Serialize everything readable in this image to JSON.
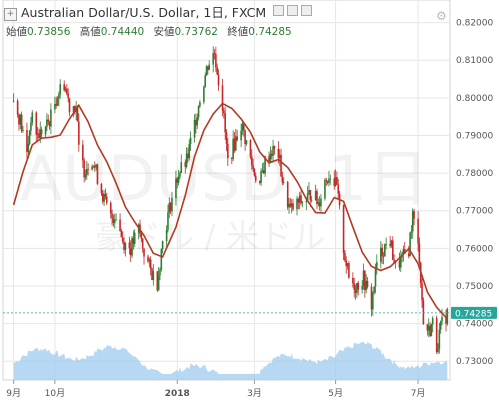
{
  "header": {
    "title": "Australian Dollar/U.S. Dollar, 1日, FXCM"
  },
  "ohlc": {
    "open_label": "始値",
    "open": "0.73856",
    "high_label": "高値",
    "high": "0.74440",
    "low_label": "安値",
    "low": "0.73762",
    "close_label": "終値",
    "close": "0.74285"
  },
  "watermark": {
    "symbol": "AUDUSD, 1日",
    "name": "豪ドル / 米ドル"
  },
  "colors": {
    "up": "#2e7d32",
    "down": "#c62828",
    "ma": "#b23a22",
    "volume": "#9ecbee",
    "price_tag": "#26a69a",
    "grid": "#e6e6e6"
  },
  "chart_data": {
    "type": "candlestick",
    "title": "Australian Dollar/U.S. Dollar, 1日, FXCM",
    "ylim": [
      0.725,
      0.826
    ],
    "yticks": [
      "0.73000",
      "0.74000",
      "0.75000",
      "0.76000",
      "0.77000",
      "0.78000",
      "0.79000",
      "0.80000",
      "0.81000",
      "0.82000"
    ],
    "xtick_labels": [
      "9月",
      "10月",
      "2018",
      "3月",
      "5月",
      "7月"
    ],
    "last_price": "0.74285",
    "ma_line": [
      {
        "x": "2017-09-01",
        "y": 0.7715
      },
      {
        "x": "2017-09-08",
        "y": 0.7803
      },
      {
        "x": "2017-09-15",
        "y": 0.7875
      },
      {
        "x": "2017-09-22",
        "y": 0.7893
      },
      {
        "x": "2017-09-29",
        "y": 0.7895
      },
      {
        "x": "2017-10-06",
        "y": 0.7901
      },
      {
        "x": "2017-10-13",
        "y": 0.7944
      },
      {
        "x": "2017-10-20",
        "y": 0.798
      },
      {
        "x": "2017-10-27",
        "y": 0.7936
      },
      {
        "x": "2017-11-03",
        "y": 0.7874
      },
      {
        "x": "2017-11-10",
        "y": 0.783
      },
      {
        "x": "2017-11-17",
        "y": 0.7773
      },
      {
        "x": "2017-11-24",
        "y": 0.771
      },
      {
        "x": "2017-12-01",
        "y": 0.767
      },
      {
        "x": "2017-12-08",
        "y": 0.7634
      },
      {
        "x": "2017-12-15",
        "y": 0.7587
      },
      {
        "x": "2017-12-22",
        "y": 0.7577
      },
      {
        "x": "2018-01-01",
        "y": 0.7656
      },
      {
        "x": "2018-01-08",
        "y": 0.7741
      },
      {
        "x": "2018-01-15",
        "y": 0.7844
      },
      {
        "x": "2018-01-22",
        "y": 0.7914
      },
      {
        "x": "2018-01-29",
        "y": 0.7957
      },
      {
        "x": "2018-02-05",
        "y": 0.7985
      },
      {
        "x": "2018-02-12",
        "y": 0.7972
      },
      {
        "x": "2018-02-19",
        "y": 0.7944
      },
      {
        "x": "2018-02-26",
        "y": 0.7909
      },
      {
        "x": "2018-03-05",
        "y": 0.7856
      },
      {
        "x": "2018-03-12",
        "y": 0.7827
      },
      {
        "x": "2018-03-19",
        "y": 0.7836
      },
      {
        "x": "2018-03-26",
        "y": 0.7815
      },
      {
        "x": "2018-04-02",
        "y": 0.7778
      },
      {
        "x": "2018-04-09",
        "y": 0.7731
      },
      {
        "x": "2018-04-16",
        "y": 0.7695
      },
      {
        "x": "2018-04-23",
        "y": 0.7694
      },
      {
        "x": "2018-04-30",
        "y": 0.7735
      },
      {
        "x": "2018-05-07",
        "y": 0.7725
      },
      {
        "x": "2018-05-14",
        "y": 0.7656
      },
      {
        "x": "2018-05-21",
        "y": 0.759
      },
      {
        "x": "2018-05-28",
        "y": 0.7552
      },
      {
        "x": "2018-06-04",
        "y": 0.7541
      },
      {
        "x": "2018-06-11",
        "y": 0.7551
      },
      {
        "x": "2018-06-18",
        "y": 0.7574
      },
      {
        "x": "2018-06-25",
        "y": 0.7599
      },
      {
        "x": "2018-07-02",
        "y": 0.7559
      },
      {
        "x": "2018-07-09",
        "y": 0.7484
      },
      {
        "x": "2018-07-16",
        "y": 0.7443
      },
      {
        "x": "2018-07-23",
        "y": 0.7416
      }
    ],
    "price_path": [
      {
        "x": "2017-09-01",
        "y": 0.799
      },
      {
        "x": "2017-09-06",
        "y": 0.794
      },
      {
        "x": "2017-09-11",
        "y": 0.785
      },
      {
        "x": "2017-09-14",
        "y": 0.795
      },
      {
        "x": "2017-09-19",
        "y": 0.79
      },
      {
        "x": "2017-09-25",
        "y": 0.792
      },
      {
        "x": "2017-09-29",
        "y": 0.795
      },
      {
        "x": "2017-10-04",
        "y": 0.801
      },
      {
        "x": "2017-10-09",
        "y": 0.804
      },
      {
        "x": "2017-10-13",
        "y": 0.798
      },
      {
        "x": "2017-10-18",
        "y": 0.798
      },
      {
        "x": "2017-10-20",
        "y": 0.786
      },
      {
        "x": "2017-10-24",
        "y": 0.781
      },
      {
        "x": "2017-10-30",
        "y": 0.784
      },
      {
        "x": "2017-11-03",
        "y": 0.779
      },
      {
        "x": "2017-11-08",
        "y": 0.773
      },
      {
        "x": "2017-11-13",
        "y": 0.768
      },
      {
        "x": "2017-11-17",
        "y": 0.769
      },
      {
        "x": "2017-11-22",
        "y": 0.762
      },
      {
        "x": "2017-11-28",
        "y": 0.76
      },
      {
        "x": "2017-12-04",
        "y": 0.765
      },
      {
        "x": "2017-12-08",
        "y": 0.759
      },
      {
        "x": "2017-12-13",
        "y": 0.754
      },
      {
        "x": "2017-12-18",
        "y": 0.751
      },
      {
        "x": "2017-12-22",
        "y": 0.762
      },
      {
        "x": "2017-12-28",
        "y": 0.772
      },
      {
        "x": "2018-01-03",
        "y": 0.78
      },
      {
        "x": "2018-01-09",
        "y": 0.783
      },
      {
        "x": "2018-01-15",
        "y": 0.793
      },
      {
        "x": "2018-01-19",
        "y": 0.8
      },
      {
        "x": "2018-01-25",
        "y": 0.809
      },
      {
        "x": "2018-01-30",
        "y": 0.812
      },
      {
        "x": "2018-02-05",
        "y": 0.798
      },
      {
        "x": "2018-02-09",
        "y": 0.783
      },
      {
        "x": "2018-02-14",
        "y": 0.788
      },
      {
        "x": "2018-02-19",
        "y": 0.793
      },
      {
        "x": "2018-02-23",
        "y": 0.788
      },
      {
        "x": "2018-02-28",
        "y": 0.781
      },
      {
        "x": "2018-03-05",
        "y": 0.777
      },
      {
        "x": "2018-03-09",
        "y": 0.783
      },
      {
        "x": "2018-03-14",
        "y": 0.786
      },
      {
        "x": "2018-03-19",
        "y": 0.785
      },
      {
        "x": "2018-03-23",
        "y": 0.776
      },
      {
        "x": "2018-03-28",
        "y": 0.77
      },
      {
        "x": "2018-04-03",
        "y": 0.772
      },
      {
        "x": "2018-04-09",
        "y": 0.773
      },
      {
        "x": "2018-04-13",
        "y": 0.775
      },
      {
        "x": "2018-04-18",
        "y": 0.772
      },
      {
        "x": "2018-04-23",
        "y": 0.778
      },
      {
        "x": "2018-04-27",
        "y": 0.78
      },
      {
        "x": "2018-05-02",
        "y": 0.776
      },
      {
        "x": "2018-05-07",
        "y": 0.76
      },
      {
        "x": "2018-05-11",
        "y": 0.752
      },
      {
        "x": "2018-05-16",
        "y": 0.75
      },
      {
        "x": "2018-05-22",
        "y": 0.752
      },
      {
        "x": "2018-05-28",
        "y": 0.745
      },
      {
        "x": "2018-06-01",
        "y": 0.756
      },
      {
        "x": "2018-06-06",
        "y": 0.76
      },
      {
        "x": "2018-06-11",
        "y": 0.762
      },
      {
        "x": "2018-06-15",
        "y": 0.755
      },
      {
        "x": "2018-06-20",
        "y": 0.757
      },
      {
        "x": "2018-06-25",
        "y": 0.76
      },
      {
        "x": "2018-06-28",
        "y": 0.769
      },
      {
        "x": "2018-07-03",
        "y": 0.758
      },
      {
        "x": "2018-07-06",
        "y": 0.74
      },
      {
        "x": "2018-07-10",
        "y": 0.738
      },
      {
        "x": "2018-07-13",
        "y": 0.74
      },
      {
        "x": "2018-07-16",
        "y": 0.734
      },
      {
        "x": "2018-07-20",
        "y": 0.74
      },
      {
        "x": "2018-07-24",
        "y": 0.7428
      }
    ]
  }
}
